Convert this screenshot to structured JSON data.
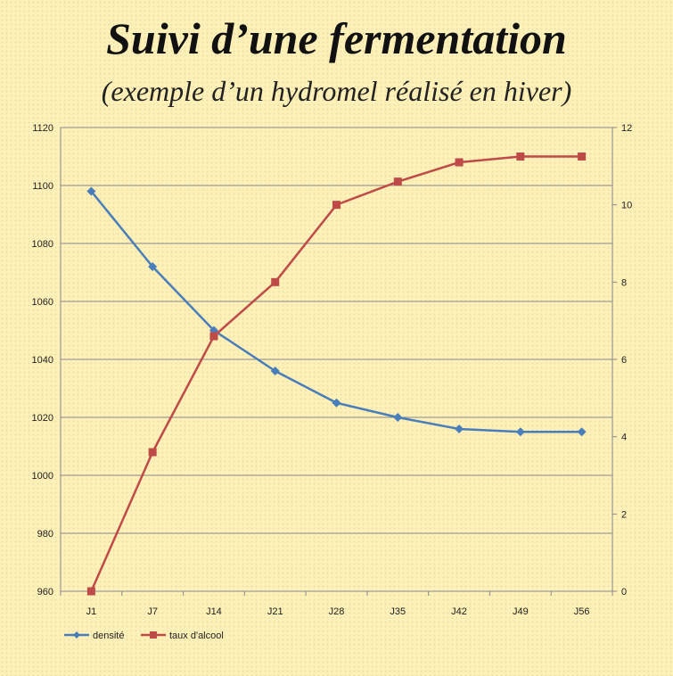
{
  "chart_data": {
    "type": "line",
    "title": "Suivi d’une fermentation",
    "subtitle": "(exemple d’un hydromel  réalisé en hiver)",
    "categories": [
      "J1",
      "J7",
      "J14",
      "J21",
      "J28",
      "J35",
      "J42",
      "J49",
      "J56"
    ],
    "series": [
      {
        "name": "densité",
        "axis": "left",
        "color": "#4a7ebb",
        "marker": "diamond",
        "values": [
          1098,
          1072,
          1050,
          1036,
          1025,
          1020,
          1016,
          1015,
          1015
        ]
      },
      {
        "name": "taux d'alcool",
        "axis": "right",
        "color": "#be4b48",
        "marker": "square",
        "values": [
          0,
          3.6,
          6.6,
          8.0,
          10.0,
          10.6,
          11.1,
          11.25,
          11.25
        ]
      }
    ],
    "y_left": {
      "min": 960,
      "max": 1120,
      "ticks": [
        960,
        980,
        1000,
        1020,
        1040,
        1060,
        1080,
        1100,
        1120
      ]
    },
    "y_right": {
      "min": 0,
      "max": 12,
      "ticks": [
        0,
        2,
        4,
        6,
        8,
        10,
        12
      ]
    },
    "grid": true,
    "legend": "bottom-left"
  }
}
